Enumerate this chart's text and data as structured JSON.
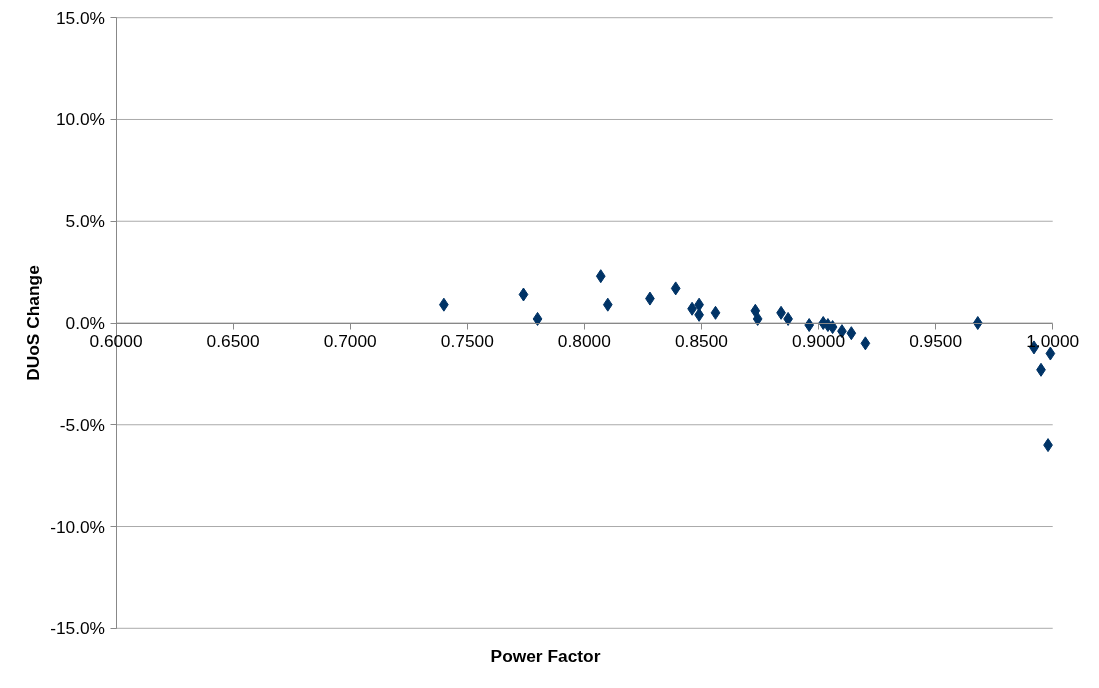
{
  "chart_data": {
    "type": "scatter",
    "xlabel": "Power Factor",
    "ylabel": "DUoS Change",
    "marker": "diamond",
    "grid": "y",
    "xlim": [
      0.6,
      1.0
    ],
    "ylim": [
      -15,
      15
    ],
    "xticks": [
      {
        "value": 0.6,
        "label": "0.6000"
      },
      {
        "value": 0.65,
        "label": "0.6500"
      },
      {
        "value": 0.7,
        "label": "0.7000"
      },
      {
        "value": 0.75,
        "label": "0.7500"
      },
      {
        "value": 0.8,
        "label": "0.8000"
      },
      {
        "value": 0.85,
        "label": "0.8500"
      },
      {
        "value": 0.9,
        "label": "0.9000"
      },
      {
        "value": 0.95,
        "label": "0.9500"
      },
      {
        "value": 1.0,
        "label": "1.0000"
      }
    ],
    "yticks": [
      {
        "value": -15,
        "label": "-15.0%"
      },
      {
        "value": -10,
        "label": "-10.0%"
      },
      {
        "value": -5,
        "label": "-5.0%"
      },
      {
        "value": 0,
        "label": "0.0%"
      },
      {
        "value": 5,
        "label": "5.0%"
      },
      {
        "value": 10,
        "label": "10.0%"
      },
      {
        "value": 15,
        "label": "15.0%"
      }
    ],
    "series": [
      {
        "color": "#003366",
        "x": [
          0.74,
          0.774,
          0.78,
          0.807,
          0.81,
          0.828,
          0.839,
          0.846,
          0.849,
          0.849,
          0.856,
          0.873,
          0.874,
          0.884,
          0.887,
          0.896,
          0.902,
          0.904,
          0.906,
          0.91,
          0.914,
          0.92,
          0.968,
          0.992,
          0.995,
          0.999,
          0.998
        ],
        "values": [
          0.9,
          1.4,
          0.2,
          2.3,
          0.9,
          1.2,
          1.7,
          0.7,
          0.9,
          0.4,
          0.5,
          0.6,
          0.2,
          0.5,
          0.2,
          -0.1,
          0.0,
          -0.1,
          -0.2,
          -0.4,
          -0.5,
          -1.0,
          0.0,
          -1.2,
          -2.3,
          -1.5,
          -6.0
        ]
      }
    ]
  }
}
